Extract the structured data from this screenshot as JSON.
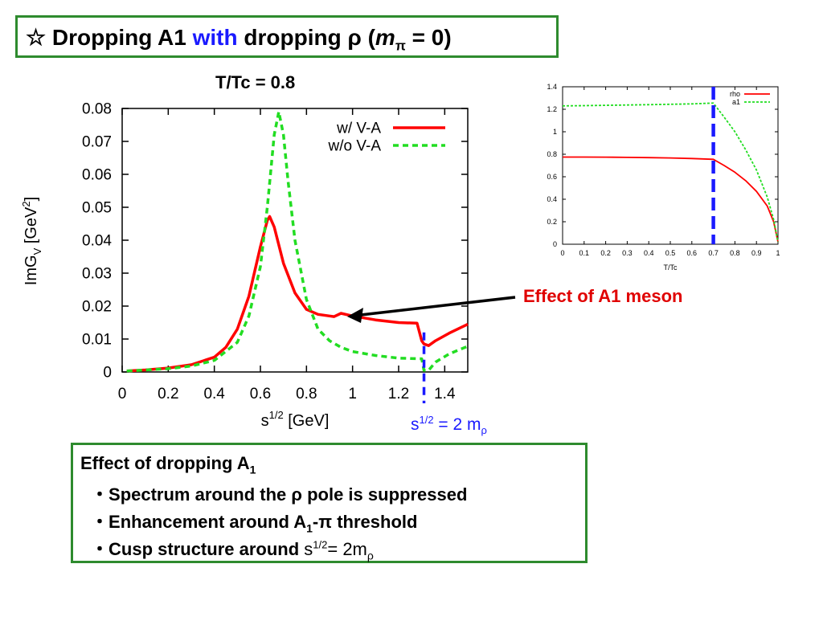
{
  "slide": {
    "title_star": "☆",
    "title_part1": "Dropping A1",
    "title_with": "with",
    "title_part2": "dropping ρ (",
    "title_m": "m",
    "title_sub": "π",
    "title_part3": "= 0)",
    "plot_title": "T/Tc = 0.8",
    "annotation_effect": "Effect of A1 meson",
    "annotation_threshold_s": "s",
    "annotation_threshold_sup": "1/2",
    "annotation_threshold_eq": "= 2 m",
    "annotation_threshold_sub": "ρ",
    "summary": {
      "heading": "Effect of dropping A",
      "heading_sub": "1",
      "bullet_mark": "・",
      "bullet1": "Spectrum around the ρ pole is suppressed",
      "bullet2_a": "Enhancement around A",
      "bullet2_sub": "1",
      "bullet2_b": "-π threshold",
      "bullet3_a": "Cusp structure around",
      "bullet3_s": "s",
      "bullet3_sup": "1/2",
      "bullet3_eq": "= 2m",
      "bullet3_sub": "ρ"
    }
  },
  "colors": {
    "red": "#ff0000",
    "green": "#22dd22",
    "blue": "#1a1aff",
    "frame": "#2e8b2e"
  },
  "chart_data": [
    {
      "type": "line",
      "xlabel_base": "s",
      "xlabel_sup": "1/2",
      "xlabel_unit": "[GeV]",
      "ylabel_base": "ImG",
      "ylabel_sub": "V",
      "ylabel_unit": "[GeV",
      "ylabel_sup": "2",
      "ylabel_close": "]",
      "xlim": [
        0,
        1.5
      ],
      "ylim": [
        0,
        0.08
      ],
      "xticks": [
        "0",
        "0.2",
        "0.4",
        "0.6",
        "0.8",
        "1",
        "1.2",
        "1.4"
      ],
      "xtick_values": [
        0,
        0.2,
        0.4,
        0.6,
        0.8,
        1.0,
        1.2,
        1.4
      ],
      "yticks": [
        "0",
        "0.01",
        "0.02",
        "0.03",
        "0.04",
        "0.05",
        "0.06",
        "0.07",
        "0.08"
      ],
      "ytick_values": [
        0,
        0.01,
        0.02,
        0.03,
        0.04,
        0.05,
        0.06,
        0.07,
        0.08
      ],
      "legend_position": "top-right",
      "marker_x": 1.31,
      "series": [
        {
          "name": "w/ V-A",
          "color": "#ff0000",
          "style": "solid",
          "points": [
            [
              0.02,
              0.0003
            ],
            [
              0.1,
              0.0006
            ],
            [
              0.2,
              0.0012
            ],
            [
              0.3,
              0.0022
            ],
            [
              0.4,
              0.0045
            ],
            [
              0.45,
              0.0075
            ],
            [
              0.5,
              0.013
            ],
            [
              0.55,
              0.023
            ],
            [
              0.6,
              0.038
            ],
            [
              0.63,
              0.046
            ],
            [
              0.64,
              0.0472
            ],
            [
              0.66,
              0.044
            ],
            [
              0.7,
              0.033
            ],
            [
              0.75,
              0.024
            ],
            [
              0.8,
              0.019
            ],
            [
              0.85,
              0.0175
            ],
            [
              0.9,
              0.017
            ],
            [
              0.92,
              0.0168
            ],
            [
              0.95,
              0.0178
            ],
            [
              1.0,
              0.017
            ],
            [
              1.1,
              0.0158
            ],
            [
              1.2,
              0.015
            ],
            [
              1.28,
              0.0148
            ],
            [
              1.3,
              0.0095
            ],
            [
              1.31,
              0.0085
            ],
            [
              1.33,
              0.008
            ],
            [
              1.36,
              0.0095
            ],
            [
              1.42,
              0.0118
            ],
            [
              1.5,
              0.0145
            ]
          ]
        },
        {
          "name": "w/o V-A",
          "color": "#22dd22",
          "style": "dashed",
          "points": [
            [
              0.02,
              0.0003
            ],
            [
              0.1,
              0.0006
            ],
            [
              0.2,
              0.001
            ],
            [
              0.3,
              0.0018
            ],
            [
              0.4,
              0.0035
            ],
            [
              0.5,
              0.009
            ],
            [
              0.55,
              0.017
            ],
            [
              0.6,
              0.032
            ],
            [
              0.63,
              0.05
            ],
            [
              0.66,
              0.072
            ],
            [
              0.68,
              0.079
            ],
            [
              0.7,
              0.072
            ],
            [
              0.72,
              0.058
            ],
            [
              0.75,
              0.04
            ],
            [
              0.8,
              0.022
            ],
            [
              0.85,
              0.013
            ],
            [
              0.9,
              0.0095
            ],
            [
              0.95,
              0.0075
            ],
            [
              1.0,
              0.0062
            ],
            [
              1.1,
              0.005
            ],
            [
              1.2,
              0.0042
            ],
            [
              1.3,
              0.004
            ],
            [
              1.31,
              0.0005
            ],
            [
              1.33,
              0.0005
            ],
            [
              1.36,
              0.003
            ],
            [
              1.42,
              0.0055
            ],
            [
              1.5,
              0.0078
            ]
          ]
        }
      ]
    },
    {
      "type": "line",
      "xlabel": "T/Tc",
      "xlim": [
        0,
        1
      ],
      "ylim": [
        0,
        1.4
      ],
      "xticks": [
        "0",
        "0.1",
        "0.2",
        "0.3",
        "0.4",
        "0.5",
        "0.6",
        "0.7",
        "0.8",
        "0.9",
        "1"
      ],
      "xtick_values": [
        0,
        0.1,
        0.2,
        0.3,
        0.4,
        0.5,
        0.6,
        0.7,
        0.8,
        0.9,
        1.0
      ],
      "yticks": [
        "0",
        "0.2",
        "0.4",
        "0.6",
        "0.8",
        "1",
        "1.2",
        "1.4"
      ],
      "ytick_values": [
        0,
        0.2,
        0.4,
        0.6,
        0.8,
        1.0,
        1.2,
        1.4
      ],
      "legend_position": "top-right",
      "marker_x": 0.7,
      "series": [
        {
          "name": "rho",
          "color": "#ff0000",
          "style": "solid",
          "points": [
            [
              0,
              0.775
            ],
            [
              0.1,
              0.775
            ],
            [
              0.2,
              0.774
            ],
            [
              0.3,
              0.772
            ],
            [
              0.4,
              0.77
            ],
            [
              0.5,
              0.767
            ],
            [
              0.6,
              0.762
            ],
            [
              0.7,
              0.755
            ],
            [
              0.75,
              0.7
            ],
            [
              0.8,
              0.64
            ],
            [
              0.85,
              0.565
            ],
            [
              0.9,
              0.47
            ],
            [
              0.95,
              0.34
            ],
            [
              0.98,
              0.2
            ],
            [
              1.0,
              0.02
            ]
          ]
        },
        {
          "name": "a1",
          "color": "#22dd22",
          "style": "dashed",
          "points": [
            [
              0,
              1.23
            ],
            [
              0.1,
              1.232
            ],
            [
              0.2,
              1.235
            ],
            [
              0.3,
              1.238
            ],
            [
              0.4,
              1.241
            ],
            [
              0.5,
              1.244
            ],
            [
              0.6,
              1.248
            ],
            [
              0.7,
              1.255
            ],
            [
              0.75,
              1.13
            ],
            [
              0.8,
              1.0
            ],
            [
              0.85,
              0.84
            ],
            [
              0.9,
              0.66
            ],
            [
              0.95,
              0.42
            ],
            [
              0.98,
              0.22
            ],
            [
              1.0,
              0.02
            ]
          ]
        }
      ]
    }
  ]
}
